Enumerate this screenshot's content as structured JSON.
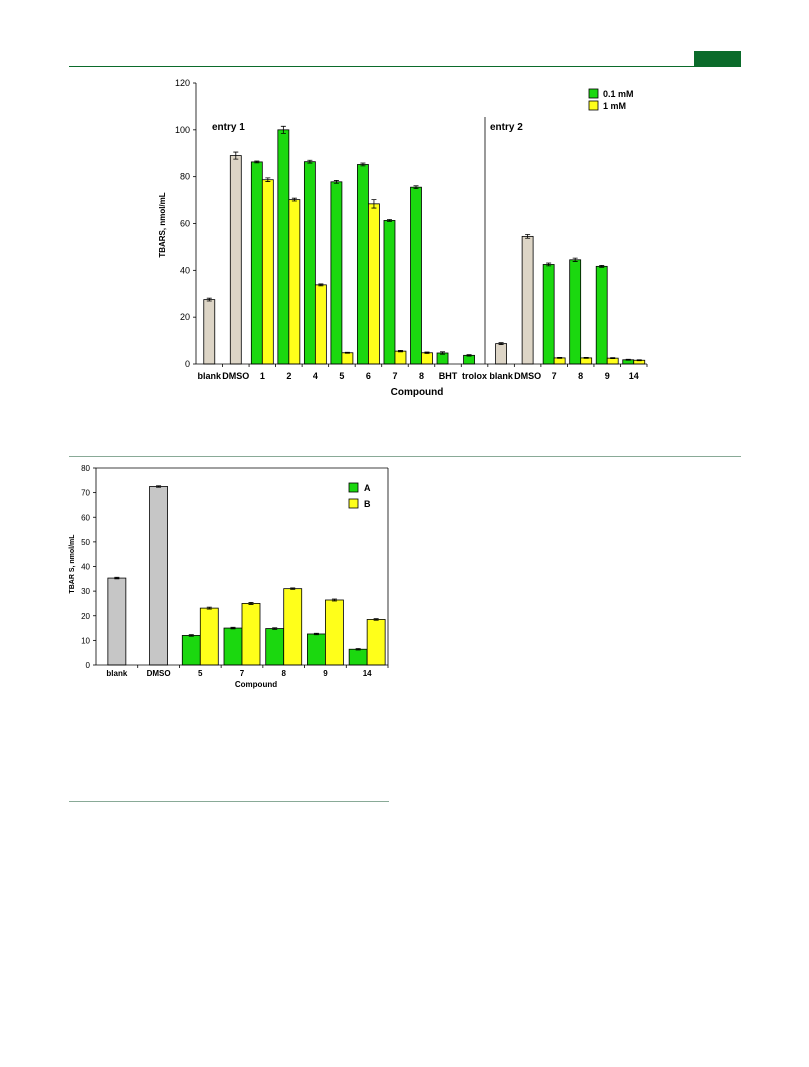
{
  "colors": {
    "green": "#1bd80f",
    "yellow": "#ffff1a",
    "beige": "#ddd5c6",
    "grey": "#c6c6c6",
    "page_rule": "#0b6b2b",
    "divider": "#89aa97"
  },
  "chart_data": [
    {
      "type": "bar",
      "ylabel": "TBARS, nmol/mL",
      "xlabel": "Compound",
      "ylim": [
        0,
        120
      ],
      "yticks": [
        0,
        20,
        40,
        60,
        80,
        100,
        120
      ],
      "legend": {
        "placement": "top-right",
        "items": [
          "0.1 mM",
          "1 mM"
        ]
      },
      "annotations": [
        "entry 1",
        "entry 2"
      ],
      "categories": [
        "blank",
        "DMSO",
        "1",
        "2",
        "4",
        "5",
        "6",
        "7",
        "8",
        "BHT",
        "trolox",
        "blank",
        "DMSO",
        "7",
        "8",
        "9",
        "14"
      ],
      "single": [
        27.5,
        89,
        null,
        null,
        null,
        null,
        null,
        null,
        null,
        null,
        null,
        8.7,
        54.5,
        null,
        null,
        null,
        null
      ],
      "single_err": [
        0.6,
        1.5,
        null,
        null,
        null,
        null,
        null,
        null,
        null,
        null,
        null,
        0.4,
        0.8,
        null,
        null,
        null,
        null
      ],
      "series": [
        {
          "name": "0.1 mM",
          "values": [
            null,
            null,
            86.3,
            100,
            86.4,
            77.8,
            85.2,
            61.3,
            75.5,
            4.7,
            3.7,
            null,
            null,
            42.5,
            44.5,
            41.7,
            1.8
          ],
          "errors": [
            null,
            null,
            0.4,
            1.5,
            0.6,
            0.6,
            0.6,
            0.4,
            0.6,
            0.5,
            0.3,
            null,
            null,
            0.6,
            0.7,
            0.4,
            0.2
          ]
        },
        {
          "name": "1 mM",
          "values": [
            null,
            null,
            78.7,
            70.2,
            33.8,
            4.8,
            68.4,
            5.5,
            4.8,
            null,
            null,
            null,
            null,
            2.6,
            2.6,
            2.5,
            1.6
          ],
          "errors": [
            null,
            null,
            0.8,
            0.6,
            0.4,
            0.2,
            1.8,
            0.3,
            0.3,
            null,
            null,
            null,
            null,
            0.2,
            0.2,
            0.2,
            0.2
          ]
        }
      ]
    },
    {
      "type": "bar",
      "ylabel": "TBAR S, nmol/mL",
      "xlabel": "Compound",
      "ylim": [
        0,
        80
      ],
      "yticks": [
        0,
        10,
        20,
        30,
        40,
        50,
        60,
        70,
        80
      ],
      "legend": {
        "placement": "top-right",
        "items": [
          "A",
          "B"
        ]
      },
      "categories": [
        "blank",
        "DMSO",
        "5",
        "7",
        "8",
        "9",
        "14"
      ],
      "single": [
        35.3,
        72.5,
        null,
        null,
        null,
        null,
        null
      ],
      "single_err": [
        0.3,
        0.3,
        null,
        null,
        null,
        null,
        null
      ],
      "series": [
        {
          "name": "A",
          "values": [
            null,
            null,
            12,
            15,
            14.8,
            12.6,
            6.4
          ],
          "errors": [
            null,
            null,
            0.3,
            0.3,
            0.3,
            0.3,
            0.3
          ]
        },
        {
          "name": "B",
          "values": [
            null,
            null,
            23.1,
            25,
            31,
            26.4,
            18.5
          ],
          "errors": [
            null,
            null,
            0.4,
            0.4,
            0.3,
            0.4,
            0.3
          ]
        }
      ]
    }
  ]
}
